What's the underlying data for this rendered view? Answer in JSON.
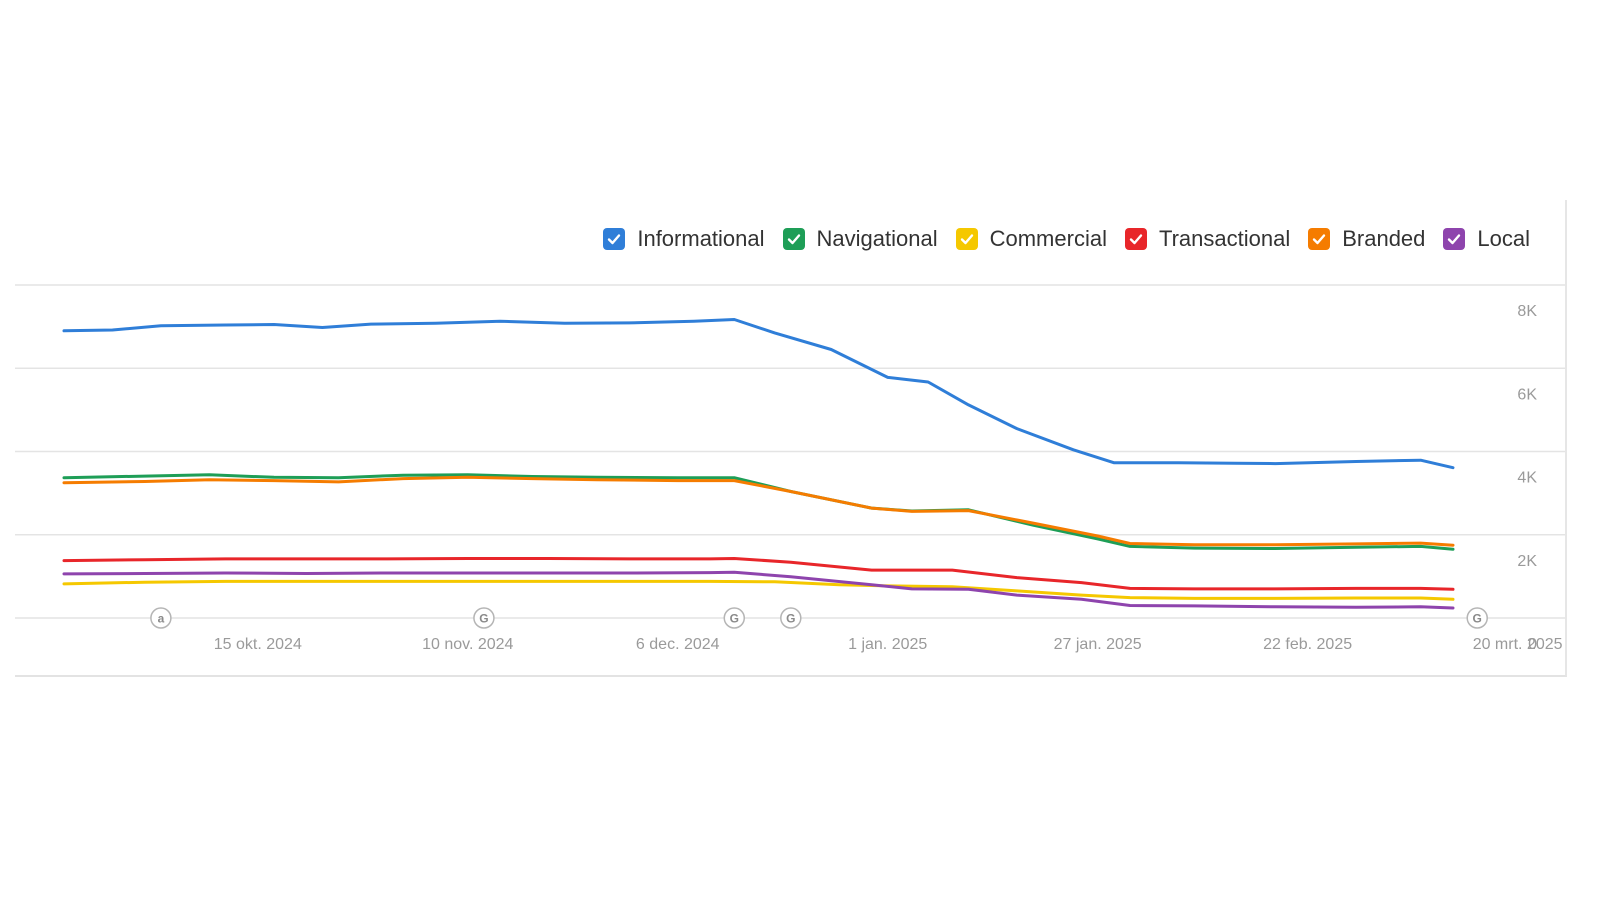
{
  "chart_data": {
    "type": "line",
    "title": "",
    "xlabel": "",
    "ylabel": "",
    "ylim": [
      0,
      8000
    ],
    "y_ticks": [
      {
        "value": 8000,
        "label": "8K"
      },
      {
        "value": 6000,
        "label": "6K"
      },
      {
        "value": 4000,
        "label": "4K"
      },
      {
        "value": 2000,
        "label": "2K"
      },
      {
        "value": 0,
        "label": "0"
      }
    ],
    "x_start_day": 0,
    "x_end_day": 172,
    "x_ticks": [
      {
        "day": 24,
        "label": "15 okt. 2024"
      },
      {
        "day": 50,
        "label": "10 nov. 2024"
      },
      {
        "day": 76,
        "label": "6 dec. 2024"
      },
      {
        "day": 102,
        "label": "1 jan. 2025"
      },
      {
        "day": 128,
        "label": "27 jan. 2025"
      },
      {
        "day": 154,
        "label": "22 feb. 2025"
      },
      {
        "day": 180,
        "label": "20 mrt. 2025"
      }
    ],
    "annotations": [
      {
        "day": 12,
        "label": "a"
      },
      {
        "day": 52,
        "label": "G"
      },
      {
        "day": 83,
        "label": "G"
      },
      {
        "day": 90,
        "label": "G"
      },
      {
        "day": 175,
        "label": "G"
      }
    ],
    "series": [
      {
        "name": "Informational",
        "color": "#2f7ed8",
        "points": [
          [
            0,
            6900
          ],
          [
            6,
            6920
          ],
          [
            12,
            7020
          ],
          [
            20,
            7040
          ],
          [
            26,
            7050
          ],
          [
            32,
            6980
          ],
          [
            38,
            7060
          ],
          [
            46,
            7080
          ],
          [
            54,
            7130
          ],
          [
            62,
            7080
          ],
          [
            70,
            7090
          ],
          [
            78,
            7130
          ],
          [
            83,
            7170
          ],
          [
            88,
            6850
          ],
          [
            95,
            6450
          ],
          [
            102,
            5780
          ],
          [
            107,
            5670
          ],
          [
            112,
            5120
          ],
          [
            118,
            4550
          ],
          [
            125,
            4040
          ],
          [
            130,
            3730
          ],
          [
            138,
            3730
          ],
          [
            145,
            3720
          ],
          [
            150,
            3710
          ],
          [
            160,
            3760
          ],
          [
            168,
            3790
          ],
          [
            172,
            3610
          ]
        ]
      },
      {
        "name": "Navigational",
        "color": "#1e9e57",
        "points": [
          [
            0,
            3370
          ],
          [
            10,
            3410
          ],
          [
            18,
            3440
          ],
          [
            26,
            3380
          ],
          [
            34,
            3370
          ],
          [
            42,
            3430
          ],
          [
            50,
            3440
          ],
          [
            58,
            3400
          ],
          [
            66,
            3380
          ],
          [
            76,
            3370
          ],
          [
            83,
            3370
          ],
          [
            90,
            3040
          ],
          [
            100,
            2640
          ],
          [
            105,
            2570
          ],
          [
            112,
            2600
          ],
          [
            120,
            2230
          ],
          [
            128,
            1900
          ],
          [
            132,
            1720
          ],
          [
            140,
            1680
          ],
          [
            150,
            1670
          ],
          [
            160,
            1700
          ],
          [
            168,
            1720
          ],
          [
            172,
            1650
          ]
        ]
      },
      {
        "name": "Commercial",
        "color": "#f5c800",
        "points": [
          [
            0,
            820
          ],
          [
            10,
            860
          ],
          [
            20,
            880
          ],
          [
            30,
            880
          ],
          [
            40,
            880
          ],
          [
            50,
            880
          ],
          [
            60,
            880
          ],
          [
            70,
            880
          ],
          [
            80,
            880
          ],
          [
            88,
            870
          ],
          [
            96,
            800
          ],
          [
            102,
            770
          ],
          [
            110,
            750
          ],
          [
            118,
            650
          ],
          [
            126,
            550
          ],
          [
            132,
            490
          ],
          [
            140,
            470
          ],
          [
            150,
            470
          ],
          [
            160,
            480
          ],
          [
            168,
            480
          ],
          [
            172,
            450
          ]
        ]
      },
      {
        "name": "Transactional",
        "color": "#e8262a",
        "points": [
          [
            0,
            1380
          ],
          [
            10,
            1400
          ],
          [
            20,
            1420
          ],
          [
            30,
            1420
          ],
          [
            40,
            1420
          ],
          [
            50,
            1430
          ],
          [
            60,
            1430
          ],
          [
            70,
            1420
          ],
          [
            80,
            1420
          ],
          [
            83,
            1430
          ],
          [
            90,
            1340
          ],
          [
            100,
            1150
          ],
          [
            110,
            1150
          ],
          [
            118,
            970
          ],
          [
            126,
            850
          ],
          [
            132,
            710
          ],
          [
            140,
            700
          ],
          [
            150,
            700
          ],
          [
            160,
            710
          ],
          [
            168,
            710
          ],
          [
            172,
            690
          ]
        ]
      },
      {
        "name": "Branded",
        "color": "#f57c00",
        "points": [
          [
            0,
            3250
          ],
          [
            10,
            3280
          ],
          [
            18,
            3320
          ],
          [
            26,
            3300
          ],
          [
            34,
            3270
          ],
          [
            42,
            3350
          ],
          [
            50,
            3380
          ],
          [
            58,
            3350
          ],
          [
            66,
            3320
          ],
          [
            76,
            3300
          ],
          [
            83,
            3300
          ],
          [
            90,
            3040
          ],
          [
            100,
            2640
          ],
          [
            105,
            2560
          ],
          [
            112,
            2580
          ],
          [
            120,
            2280
          ],
          [
            128,
            1970
          ],
          [
            132,
            1790
          ],
          [
            140,
            1760
          ],
          [
            150,
            1760
          ],
          [
            160,
            1780
          ],
          [
            168,
            1800
          ],
          [
            172,
            1750
          ]
        ]
      },
      {
        "name": "Local",
        "color": "#8e44ad",
        "points": [
          [
            0,
            1060
          ],
          [
            10,
            1070
          ],
          [
            20,
            1080
          ],
          [
            30,
            1070
          ],
          [
            40,
            1080
          ],
          [
            50,
            1080
          ],
          [
            60,
            1080
          ],
          [
            70,
            1080
          ],
          [
            80,
            1090
          ],
          [
            83,
            1100
          ],
          [
            90,
            990
          ],
          [
            100,
            800
          ],
          [
            105,
            700
          ],
          [
            112,
            690
          ],
          [
            118,
            550
          ],
          [
            126,
            450
          ],
          [
            132,
            300
          ],
          [
            140,
            290
          ],
          [
            150,
            270
          ],
          [
            160,
            260
          ],
          [
            168,
            270
          ],
          [
            172,
            240
          ]
        ]
      }
    ]
  }
}
